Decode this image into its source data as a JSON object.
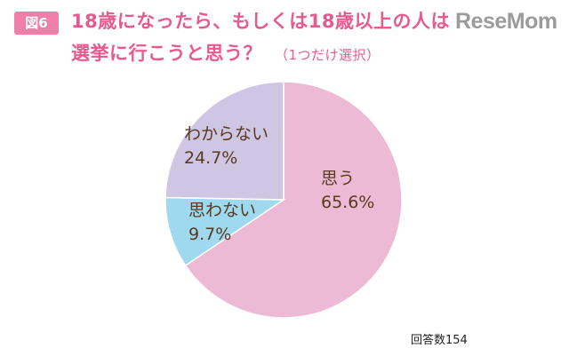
{
  "badge": "図6",
  "title_line1": "18歳になったら、もしくは18歳以上の人は",
  "title_line2": "選挙に行こうと思う？",
  "title_note": "（1つだけ選択）",
  "brand": "ReseMom",
  "footnote": "回答数154",
  "colors": {
    "accent": "#e75a90",
    "badge": "#ef7fa8"
  },
  "chart_data": {
    "type": "pie",
    "title": "18歳になったら、もしくは18歳以上の人は選挙に行こうと思う？",
    "start": "12 o'clock",
    "direction": "clockwise",
    "slices": [
      {
        "label": "思う",
        "value": 65.6,
        "value_text": "65.6%",
        "color": "#ecbad5"
      },
      {
        "label": "思わない",
        "value": 9.7,
        "value_text": "9.7%",
        "color": "#9fd9ef"
      },
      {
        "label": "わからない",
        "value": 24.7,
        "value_text": "24.7%",
        "color": "#cfc6e3"
      }
    ]
  }
}
